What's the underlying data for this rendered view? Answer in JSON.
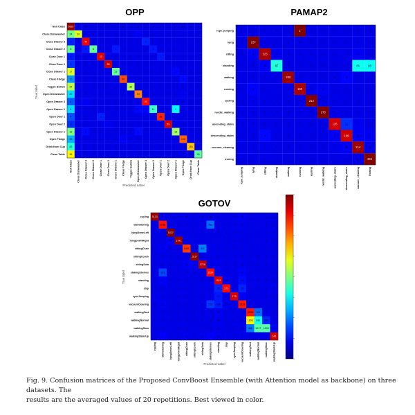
{
  "caption": {
    "line1": "Fig. 9.  Confusion matrices of the Proposed ConvBoost Ensemble (with Attention model as backbone) on three datasets. The",
    "line2": "results are the averaged values of 20 repetitions. Best viewed in color."
  },
  "chart_data": [
    {
      "type": "heatmap",
      "title": "OPP",
      "xlabel": "Predicted Label",
      "ylabel": "True label",
      "colormap": "jet",
      "classes": [
        "Null Class",
        "Close Dishwasher",
        "Close Drawer 3",
        "Close Drawer 2",
        "Close Door 1",
        "Close Door 2",
        "Close Drawer 1",
        "Close Fridge",
        "Toggle Switch",
        "Open Dishwasher",
        "Open Drawer 3",
        "Open Drawer 2",
        "Open Door 1",
        "Open Door 2",
        "Open Drawer 1",
        "Open Fridge",
        "Drink from Cup",
        "Clean Table"
      ],
      "matrix": [
        [
          5835,
          5,
          13,
          1,
          2,
          4,
          2,
          13,
          6,
          5,
          11,
          2,
          3,
          1,
          3,
          25,
          48,
          3
        ],
        [
          24,
          30,
          0,
          0,
          0,
          0,
          0,
          0,
          0,
          1,
          0,
          0,
          0,
          0,
          0,
          0,
          0,
          0
        ],
        [
          3,
          0,
          40,
          0,
          0,
          0,
          0,
          0,
          0,
          0,
          3,
          0,
          0,
          0,
          0,
          0,
          0,
          0
        ],
        [
          8,
          0,
          1,
          8,
          0,
          0,
          1,
          0,
          0,
          0,
          0,
          1,
          0,
          0,
          0,
          0,
          0,
          0
        ],
        [
          2,
          0,
          0,
          0,
          33,
          0,
          0,
          0,
          0,
          0,
          0,
          0,
          2,
          0,
          0,
          0,
          0,
          0
        ],
        [
          5,
          0,
          0,
          0,
          0,
          55,
          0,
          0,
          0,
          0,
          0,
          0,
          0,
          0,
          0,
          0,
          0,
          0
        ],
        [
          17,
          0,
          0,
          0,
          0,
          0,
          13,
          0,
          0,
          0,
          0,
          0,
          0,
          0,
          1,
          0,
          0,
          0
        ],
        [
          16,
          0,
          0,
          0,
          0,
          0,
          0,
          66,
          0,
          0,
          0,
          0,
          0,
          0,
          0,
          3,
          0,
          0
        ],
        [
          37,
          0,
          0,
          0,
          0,
          0,
          0,
          0,
          36,
          0,
          0,
          0,
          0,
          0,
          0,
          0,
          0,
          0
        ],
        [
          20,
          0,
          0,
          0,
          0,
          0,
          0,
          0,
          0,
          53,
          0,
          0,
          0,
          0,
          0,
          1,
          0,
          0
        ],
        [
          6,
          0,
          1,
          0,
          0,
          0,
          0,
          0,
          0,
          0,
          40,
          0,
          0,
          0,
          0,
          0,
          0,
          0
        ],
        [
          8,
          0,
          0,
          0,
          0,
          0,
          0,
          0,
          0,
          1,
          1,
          11,
          0,
          0,
          9,
          0,
          0,
          0
        ],
        [
          4,
          0,
          0,
          0,
          2,
          0,
          0,
          0,
          0,
          0,
          0,
          0,
          28,
          0,
          0,
          0,
          0,
          0
        ],
        [
          5,
          0,
          0,
          0,
          0,
          1,
          0,
          0,
          0,
          0,
          0,
          0,
          0,
          59,
          0,
          0,
          0,
          0
        ],
        [
          12,
          0,
          1,
          0,
          0,
          0,
          0,
          0,
          0,
          1,
          0,
          0,
          0,
          0,
          13,
          0,
          0,
          0
        ],
        [
          38,
          0,
          0,
          0,
          0,
          0,
          0,
          4,
          0,
          0,
          0,
          0,
          0,
          0,
          0,
          128,
          0,
          0
        ],
        [
          83,
          0,
          0,
          0,
          0,
          0,
          0,
          0,
          0,
          1,
          0,
          0,
          0,
          0,
          0,
          0,
          155,
          0
        ],
        [
          38,
          0,
          0,
          0,
          0,
          0,
          0,
          0,
          0,
          0,
          0,
          0,
          0,
          0,
          0,
          0,
          0,
          26
        ]
      ]
    },
    {
      "type": "heatmap",
      "title": "PAMAP2",
      "colormap": "jet",
      "classes": [
        "rope_jumping",
        "lying",
        "sitting",
        "standing",
        "walking",
        "running",
        "cycling",
        "nordic_walking",
        "ascending_stairs",
        "descending_stairs",
        "vacuum_cleaning",
        "ironing"
      ],
      "matrix": [
        [
          0,
          0,
          0,
          0,
          0,
          1,
          0,
          0,
          0,
          0,
          0,
          0
        ],
        [
          0,
          237,
          0,
          0,
          0,
          0,
          0,
          0,
          0,
          0,
          1,
          0
        ],
        [
          0,
          4,
          223,
          3,
          0,
          0,
          0,
          0,
          0,
          0,
          4,
          0
        ],
        [
          0,
          0,
          4,
          87,
          0,
          0,
          0,
          0,
          0,
          0,
          81,
          80
        ],
        [
          0,
          0,
          0,
          0,
          260,
          0,
          0,
          0,
          1,
          8,
          0,
          0
        ],
        [
          0,
          5,
          0,
          0,
          0,
          190,
          1,
          3,
          0,
          0,
          0,
          0
        ],
        [
          0,
          1,
          0,
          0,
          0,
          0,
          212,
          0,
          0,
          0,
          0,
          0
        ],
        [
          0,
          0,
          0,
          0,
          0,
          0,
          0,
          278,
          0,
          0,
          0,
          0
        ],
        [
          0,
          0,
          0,
          0,
          0,
          0,
          0,
          0,
          126,
          11,
          2,
          0
        ],
        [
          0,
          0,
          4,
          0,
          0,
          0,
          0,
          0,
          2,
          106,
          2,
          2
        ],
        [
          0,
          0,
          1,
          0,
          0,
          0,
          0,
          0,
          1,
          4,
          214,
          1
        ],
        [
          0,
          0,
          0,
          0,
          0,
          0,
          0,
          0,
          0,
          0,
          1,
          392
        ]
      ]
    },
    {
      "type": "heatmap",
      "title": "GOTOV",
      "xlabel": "Predicted Label",
      "ylabel": "True label",
      "colormap": "jet",
      "colorbar": true,
      "classes": [
        "cycling",
        "dishwashing",
        "lyingDownLeft",
        "lyingDownRight",
        "sittingChair",
        "sittingCouch",
        "sittingSofa",
        "stakingShelves",
        "standing",
        "step",
        "syncJumping",
        "vacuumCleaning",
        "walkingFast",
        "walkingNormal",
        "walkingSlow",
        "walkingStairsUp"
      ],
      "matrix": [
        [
          5133,
          4,
          1,
          0,
          40,
          0,
          2,
          16,
          0,
          0,
          0,
          73,
          1,
          0,
          1,
          2
        ],
        [
          1,
          1518,
          0,
          0,
          1,
          1,
          4,
          262,
          4,
          0,
          0,
          13,
          0,
          0,
          1,
          2
        ],
        [
          1,
          0,
          1827,
          1,
          0,
          0,
          0,
          0,
          0,
          1,
          0,
          0,
          0,
          0,
          0,
          0
        ],
        [
          0,
          0,
          45,
          1791,
          0,
          1,
          0,
          0,
          0,
          0,
          0,
          0,
          0,
          0,
          0,
          0
        ],
        [
          1,
          35,
          0,
          0,
          1451,
          3,
          302,
          17,
          1,
          1,
          1,
          4,
          0,
          0,
          0,
          1
        ],
        [
          0,
          1,
          0,
          0,
          1,
          1617,
          14,
          0,
          1,
          0,
          0,
          4,
          0,
          1,
          0,
          1
        ],
        [
          0,
          14,
          0,
          0,
          26,
          19,
          1228,
          1,
          21,
          0,
          0,
          10,
          0,
          0,
          0,
          1
        ],
        [
          0,
          192,
          0,
          0,
          6,
          0,
          1,
          1559,
          21,
          0,
          0,
          54,
          0,
          0,
          0,
          0
        ],
        [
          0,
          45,
          0,
          0,
          0,
          1,
          0,
          16,
          1521,
          24,
          0,
          64,
          0,
          13,
          1,
          1
        ],
        [
          0,
          0,
          0,
          0,
          0,
          0,
          1,
          0,
          30,
          375,
          0,
          28,
          0,
          0,
          1,
          4
        ],
        [
          2,
          0,
          0,
          0,
          0,
          0,
          0,
          1,
          10,
          0,
          175,
          5,
          0,
          0,
          0,
          0
        ],
        [
          5,
          24,
          0,
          0,
          0,
          0,
          10,
          159,
          100,
          0,
          0,
          1529,
          0,
          0,
          4,
          1
        ],
        [
          0,
          1,
          0,
          0,
          0,
          0,
          1,
          1,
          40,
          1,
          1,
          0,
          2095,
          363,
          0,
          1
        ],
        [
          0,
          0,
          0,
          0,
          1,
          0,
          0,
          4,
          30,
          2,
          1,
          1,
          1806,
          990,
          208,
          0
        ],
        [
          0,
          2,
          0,
          0,
          4,
          0,
          4,
          0,
          30,
          0,
          1,
          21,
          461,
          1217,
          1209,
          71
        ],
        [
          0,
          4,
          0,
          0,
          2,
          0,
          1,
          4,
          1,
          1,
          0,
          1,
          0,
          0,
          1,
          149
        ]
      ]
    }
  ]
}
